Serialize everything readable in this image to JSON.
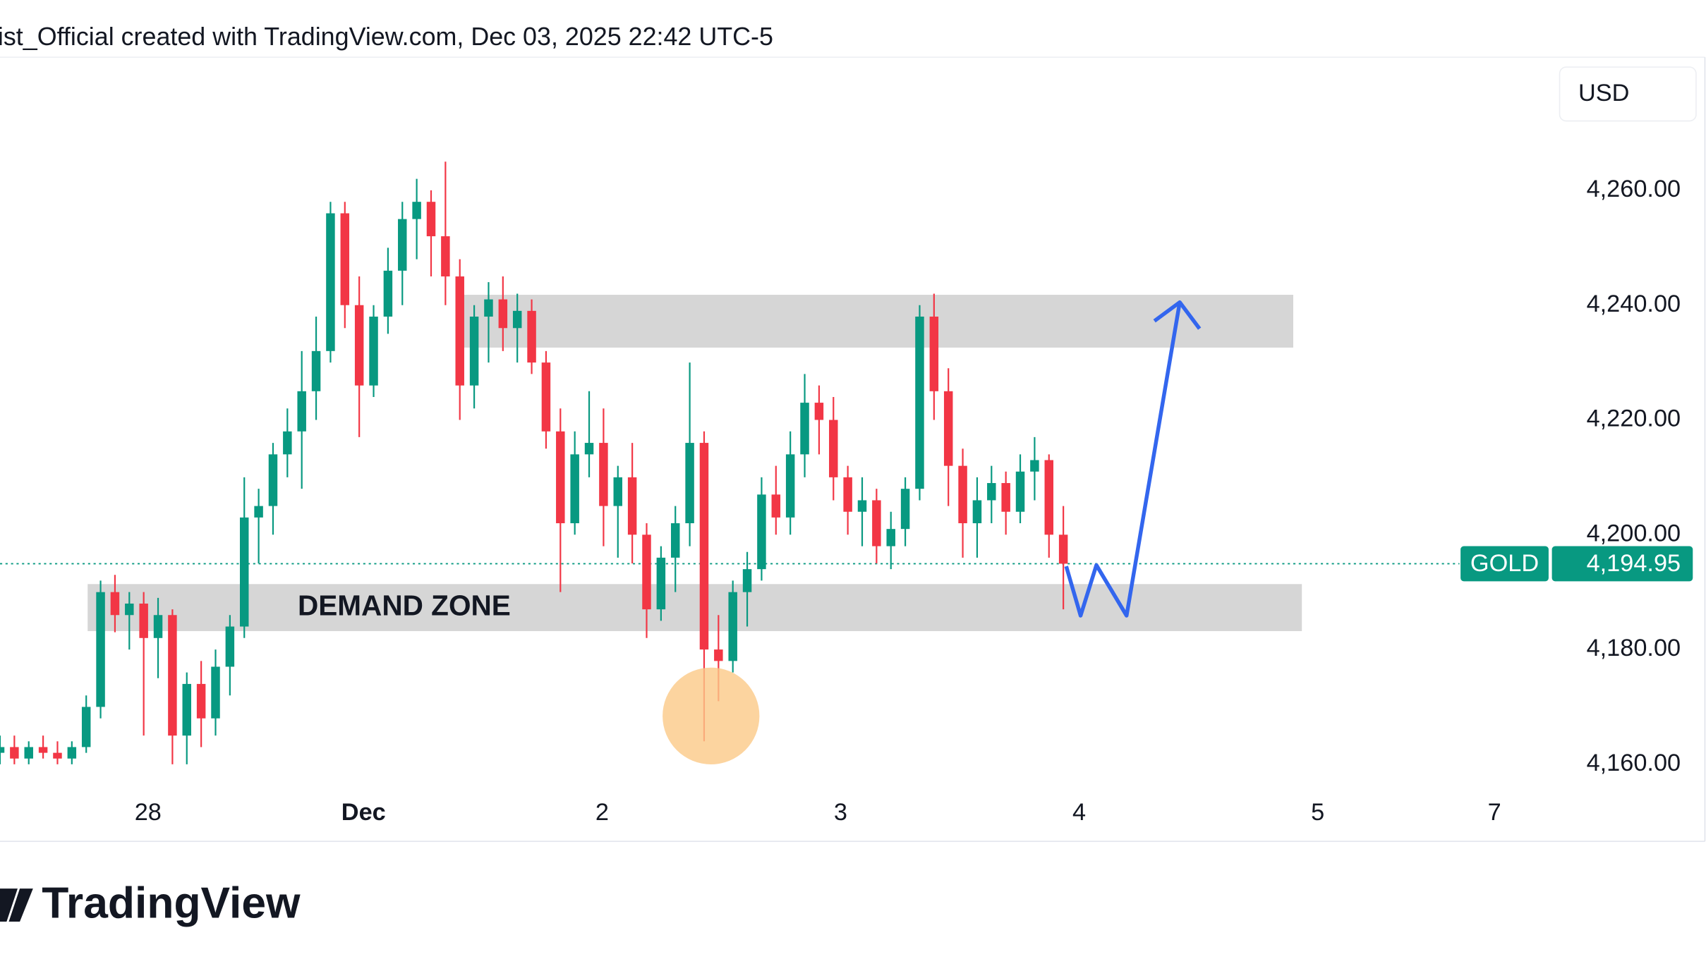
{
  "header": "ist_Official created with TradingView.com, Dec 03, 2025 22:42 UTC-5",
  "branding": "TradingView",
  "currency": "USD",
  "chart_data": {
    "type": "candlestick",
    "name": "GOLD",
    "up_color": "#089981",
    "down_color": "#f23645",
    "x": [
      0,
      1,
      2,
      3,
      4,
      5,
      6,
      7,
      8,
      9,
      10,
      11,
      12,
      13,
      14,
      15,
      16,
      17,
      18,
      19,
      20,
      21,
      22,
      23,
      24,
      25,
      26,
      27,
      28,
      29,
      30,
      31,
      32,
      33,
      34,
      35,
      36,
      37,
      38,
      39,
      40,
      41,
      42,
      43,
      44,
      45,
      46,
      47,
      48,
      49,
      50,
      51,
      52,
      53,
      54,
      55,
      56,
      57,
      58,
      59,
      60,
      61,
      62,
      63,
      64,
      65,
      66,
      67,
      68,
      69,
      70,
      71,
      72,
      73,
      74
    ],
    "ohlc": [
      [
        4162,
        4165,
        4160,
        4163
      ],
      [
        4163,
        4165,
        4160,
        4161
      ],
      [
        4161,
        4164,
        4160,
        4163
      ],
      [
        4163,
        4165,
        4161,
        4162
      ],
      [
        4162,
        4164,
        4160,
        4161
      ],
      [
        4161,
        4164,
        4160,
        4163
      ],
      [
        4163,
        4172,
        4162,
        4170
      ],
      [
        4170,
        4192,
        4168,
        4190
      ],
      [
        4190,
        4193,
        4183,
        4186
      ],
      [
        4186,
        4190,
        4180,
        4188
      ],
      [
        4188,
        4190,
        4165,
        4182
      ],
      [
        4182,
        4189,
        4175,
        4186
      ],
      [
        4186,
        4187,
        4160,
        4165
      ],
      [
        4165,
        4176,
        4160,
        4174
      ],
      [
        4174,
        4178,
        4163,
        4168
      ],
      [
        4168,
        4180,
        4165,
        4177
      ],
      [
        4177,
        4186,
        4172,
        4184
      ],
      [
        4184,
        4210,
        4182,
        4203
      ],
      [
        4203,
        4208,
        4195,
        4205
      ],
      [
        4205,
        4216,
        4200,
        4214
      ],
      [
        4214,
        4222,
        4210,
        4218
      ],
      [
        4218,
        4232,
        4208,
        4225
      ],
      [
        4225,
        4238,
        4220,
        4232
      ],
      [
        4232,
        4258,
        4230,
        4256
      ],
      [
        4256,
        4258,
        4236,
        4240
      ],
      [
        4240,
        4245,
        4217,
        4226
      ],
      [
        4226,
        4240,
        4224,
        4238
      ],
      [
        4238,
        4250,
        4235,
        4246
      ],
      [
        4246,
        4258,
        4240,
        4255
      ],
      [
        4255,
        4262,
        4248,
        4258
      ],
      [
        4258,
        4260,
        4245,
        4252
      ],
      [
        4252,
        4265,
        4240,
        4245
      ],
      [
        4245,
        4248,
        4220,
        4226
      ],
      [
        4226,
        4240,
        4222,
        4238
      ],
      [
        4238,
        4244,
        4230,
        4241
      ],
      [
        4241,
        4245,
        4232,
        4236
      ],
      [
        4236,
        4242,
        4230,
        4239
      ],
      [
        4239,
        4241,
        4228,
        4230
      ],
      [
        4230,
        4232,
        4215,
        4218
      ],
      [
        4218,
        4222,
        4190,
        4202
      ],
      [
        4202,
        4218,
        4200,
        4214
      ],
      [
        4214,
        4225,
        4210,
        4216
      ],
      [
        4216,
        4222,
        4198,
        4205
      ],
      [
        4205,
        4212,
        4196,
        4210
      ],
      [
        4210,
        4216,
        4195,
        4200
      ],
      [
        4200,
        4202,
        4182,
        4187
      ],
      [
        4187,
        4198,
        4185,
        4196
      ],
      [
        4196,
        4205,
        4190,
        4202
      ],
      [
        4202,
        4230,
        4198,
        4216
      ],
      [
        4216,
        4218,
        4164,
        4180
      ],
      [
        4180,
        4186,
        4171,
        4178
      ],
      [
        4178,
        4192,
        4176,
        4190
      ],
      [
        4190,
        4197,
        4184,
        4194
      ],
      [
        4194,
        4210,
        4192,
        4207
      ],
      [
        4207,
        4212,
        4200,
        4203
      ],
      [
        4203,
        4218,
        4200,
        4214
      ],
      [
        4214,
        4228,
        4210,
        4223
      ],
      [
        4223,
        4226,
        4214,
        4220
      ],
      [
        4220,
        4224,
        4206,
        4210
      ],
      [
        4210,
        4212,
        4200,
        4204
      ],
      [
        4204,
        4210,
        4198,
        4206
      ],
      [
        4206,
        4208,
        4195,
        4198
      ],
      [
        4198,
        4204,
        4194,
        4201
      ],
      [
        4201,
        4210,
        4198,
        4208
      ],
      [
        4208,
        4240,
        4206,
        4238
      ],
      [
        4238,
        4242,
        4220,
        4225
      ],
      [
        4225,
        4229,
        4205,
        4212
      ],
      [
        4212,
        4215,
        4196,
        4202
      ],
      [
        4202,
        4210,
        4196,
        4206
      ],
      [
        4206,
        4212,
        4202,
        4209
      ],
      [
        4209,
        4211,
        4200,
        4204
      ],
      [
        4204,
        4214,
        4202,
        4211
      ],
      [
        4211,
        4217,
        4206,
        4213
      ],
      [
        4213,
        4214,
        4196,
        4200
      ],
      [
        4200,
        4205,
        4187,
        4194.95
      ]
    ],
    "last_price": {
      "value": 4194.95,
      "label": "4,194.95"
    },
    "xlim": [
      0,
      108
    ],
    "ylim": [
      4155.2,
      4283.2
    ],
    "xticks": [
      {
        "value": 10.3,
        "label": "28"
      },
      {
        "value": 25.3,
        "label": "Dec"
      },
      {
        "value": 41.9,
        "label": "2"
      },
      {
        "value": 58.5,
        "label": "3"
      },
      {
        "value": 75.1,
        "label": "4"
      },
      {
        "value": 91.7,
        "label": "5"
      },
      {
        "value": 104,
        "label": "7"
      }
    ],
    "yticks": [
      {
        "value": 4160,
        "label": "4,160.00"
      },
      {
        "value": 4180,
        "label": "4,180.00"
      },
      {
        "value": 4200,
        "label": "4,200.00"
      },
      {
        "value": 4220,
        "label": "4,220.00"
      },
      {
        "value": 4240,
        "label": "4,240.00"
      },
      {
        "value": 4260,
        "label": "4,260.00"
      }
    ],
    "zones": [
      {
        "x": [
          32.2,
          90
        ],
        "y": [
          4232.6,
          4241.8
        ],
        "color": "#d6d6d6"
      },
      {
        "label": "DEMAND ZONE",
        "x": [
          6.1,
          90.6
        ],
        "y": [
          4183.2,
          4191.4
        ],
        "color": "#d6d6d6"
      }
    ],
    "projection": {
      "color": "#3366ee",
      "x": [
        74.2,
        75.2,
        76.3,
        78.4,
        82.1
      ],
      "y": [
        4194.5,
        4185.9,
        4194.7,
        4185.9,
        4240.5
      ]
    }
  }
}
